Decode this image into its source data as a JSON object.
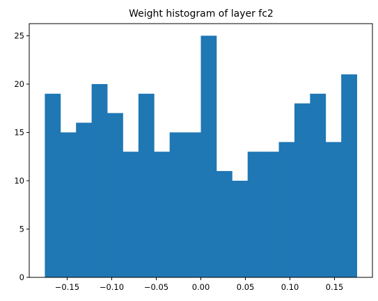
{
  "chart_data": {
    "type": "bar",
    "title": "Weight histogram of layer fc2",
    "xlabel": "",
    "ylabel": "",
    "bin_edges": [
      -0.175,
      -0.1575,
      -0.14,
      -0.1225,
      -0.105,
      -0.0875,
      -0.07,
      -0.0525,
      -0.035,
      -0.0175,
      0.0,
      0.0175,
      0.035,
      0.0525,
      0.07,
      0.0875,
      0.105,
      0.1225,
      0.14,
      0.1575,
      0.175
    ],
    "values": [
      19,
      15,
      16,
      20,
      17,
      13,
      19,
      13,
      15,
      15,
      25,
      11,
      10,
      13,
      13,
      14,
      18,
      19,
      14,
      21
    ],
    "xlim": [
      -0.1925,
      0.1925
    ],
    "ylim": [
      0,
      26.25
    ],
    "x_ticks": [
      -0.15,
      -0.1,
      -0.05,
      0.0,
      0.05,
      0.1,
      0.15
    ],
    "x_tick_labels": [
      "−0.15",
      "−0.10",
      "−0.05",
      "0.00",
      "0.05",
      "0.10",
      "0.15"
    ],
    "y_ticks": [
      0,
      5,
      10,
      15,
      20,
      25
    ],
    "y_tick_labels": [
      "0",
      "5",
      "10",
      "15",
      "20",
      "25"
    ],
    "grid": false,
    "color": "#1f77b4"
  }
}
